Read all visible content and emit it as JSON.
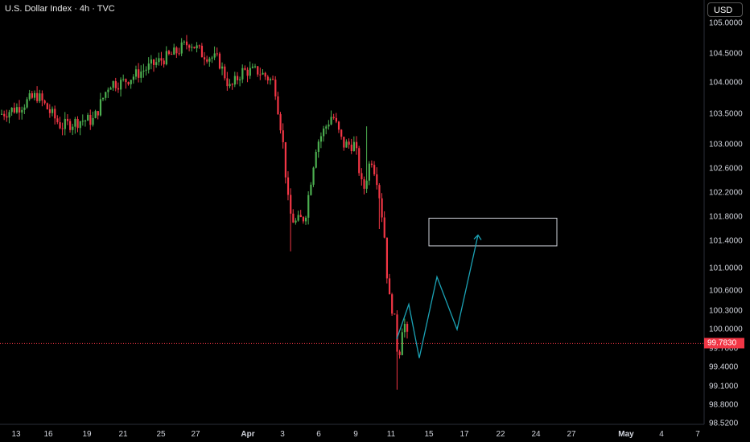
{
  "header": {
    "title": "U.S. Dollar Index · 4h · TVC",
    "currency_label": "USD"
  },
  "colors": {
    "background": "#000000",
    "up_candle": "#26a69a",
    "up_candle_bright": "#4caf50",
    "down_candle": "#f23645",
    "projection": "#1ba2b5",
    "box_border": "#d1d4dc",
    "last_price_line": "#f23645"
  },
  "price_axis": {
    "ticks": [
      "105.0000",
      "104.5000",
      "104.0000",
      "103.5000",
      "103.0000",
      "102.6000",
      "102.2000",
      "101.8000",
      "101.4000",
      "101.0000",
      "100.6000",
      "100.3000",
      "100.0000",
      "99.7000",
      "99.4000",
      "99.1000",
      "98.8000",
      "98.5200"
    ],
    "last_price": "99.7830"
  },
  "time_axis": {
    "ticks": [
      "13",
      "16",
      "19",
      "21",
      "25",
      "27",
      "Apr",
      "3",
      "6",
      "9",
      "11",
      "15",
      "17",
      "22",
      "24",
      "27",
      "May",
      "4",
      "7"
    ]
  },
  "chart_data": {
    "type": "candlestick",
    "title": "U.S. Dollar Index · 4h · TVC",
    "y_axis": {
      "ticks": [
        105.0,
        104.5,
        104.0,
        103.5,
        103.0,
        102.6,
        102.2,
        101.8,
        101.4,
        101.0,
        100.6,
        100.3,
        100.0,
        99.7,
        99.4,
        99.1,
        98.8,
        98.52
      ],
      "last_price": 99.783
    },
    "x_axis": {
      "ticks": [
        "13",
        "16",
        "19",
        "21",
        "25",
        "27",
        "Apr",
        "3",
        "6",
        "9",
        "11",
        "15",
        "17",
        "22",
        "24",
        "27",
        "May",
        "4",
        "7"
      ]
    },
    "trend_waypoints": [
      {
        "label": "13",
        "close": 103.6
      },
      {
        "label": "16",
        "close": 103.8
      },
      {
        "label": "19",
        "close": 103.6
      },
      {
        "label": "21",
        "close": 104.1
      },
      {
        "label": "25",
        "close": 104.4
      },
      {
        "label": "27",
        "close": 104.5
      },
      {
        "label": "Apr",
        "close": 104.3
      },
      {
        "label": "3",
        "close": 102.6
      },
      {
        "label": "6",
        "close": 102.9
      },
      {
        "label": "9",
        "close": 102.8
      },
      {
        "label": "11",
        "close": 99.8
      }
    ],
    "target_zone": {
      "price_top": 101.78,
      "price_bottom": 101.33,
      "x_start": "15",
      "x_end": "22"
    },
    "projection_path": [
      {
        "x": "11",
        "price": 99.85
      },
      {
        "x": "11",
        "price": 100.4
      },
      {
        "x": "15",
        "price": 99.55
      },
      {
        "x": "15",
        "price": 100.85
      },
      {
        "x": "17",
        "price": 100.0
      },
      {
        "x": "17",
        "price": 101.5
      }
    ]
  }
}
